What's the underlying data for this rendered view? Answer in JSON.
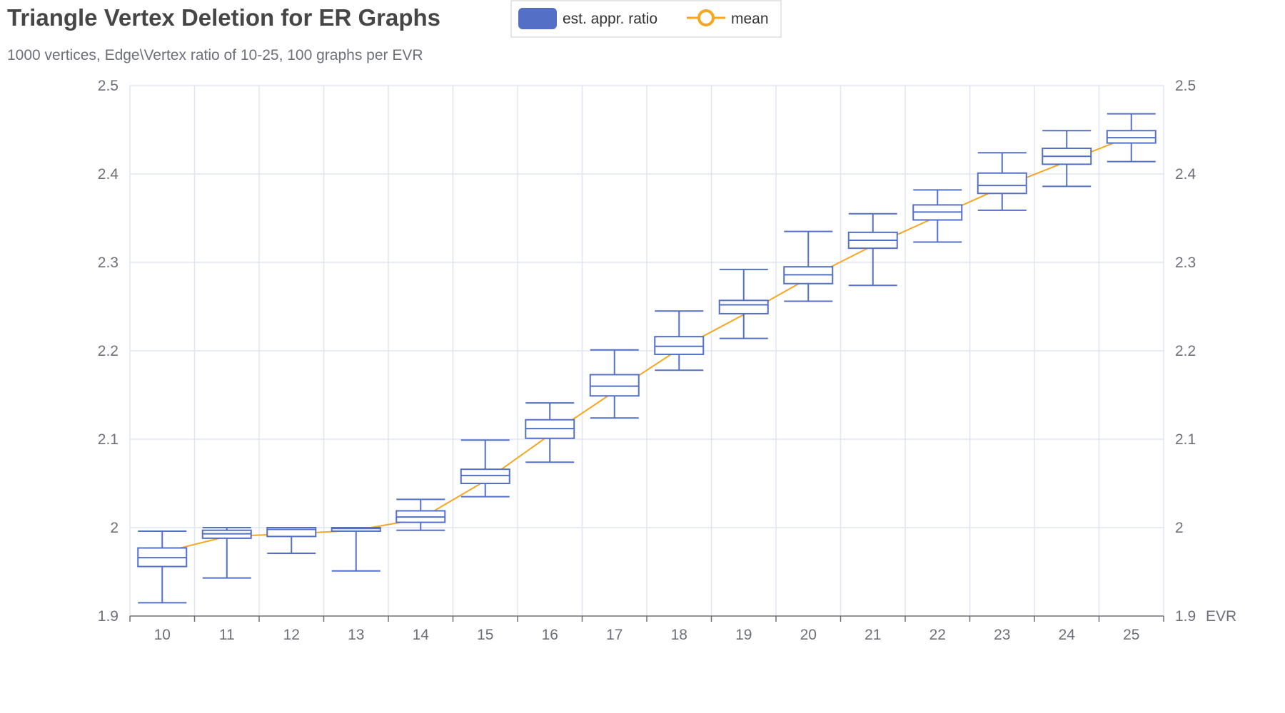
{
  "chart_data": {
    "type": "boxplot",
    "title": "Triangle Vertex Deletion for ER Graphs",
    "subtitle": "1000 vertices, Edge\\Vertex ratio of 10-25, 100 graphs per EVR",
    "xlabel": "EVR",
    "ylabel": "",
    "categories": [
      "10",
      "11",
      "12",
      "13",
      "14",
      "15",
      "16",
      "17",
      "18",
      "19",
      "20",
      "21",
      "22",
      "23",
      "24",
      "25"
    ],
    "ylim": [
      1.9,
      2.5
    ],
    "yticks": [
      "1.9",
      "2",
      "2.1",
      "2.2",
      "2.3",
      "2.4",
      "2.5"
    ],
    "grid": true,
    "legend_position": "top",
    "series": [
      {
        "name": "est. appr. ratio",
        "type": "boxplot",
        "color": "#5470c6",
        "boxes": [
          {
            "min": 1.915,
            "q1": 1.956,
            "median": 1.966,
            "q3": 1.977,
            "max": 1.996
          },
          {
            "min": 1.943,
            "q1": 1.988,
            "median": 1.993,
            "q3": 1.997,
            "max": 2.0
          },
          {
            "min": 1.971,
            "q1": 1.99,
            "median": 1.998,
            "q3": 2.0,
            "max": 2.0
          },
          {
            "min": 1.951,
            "q1": 1.996,
            "median": 1.999,
            "q3": 2.0,
            "max": 2.0
          },
          {
            "min": 1.997,
            "q1": 2.006,
            "median": 2.012,
            "q3": 2.019,
            "max": 2.032
          },
          {
            "min": 2.035,
            "q1": 2.05,
            "median": 2.059,
            "q3": 2.066,
            "max": 2.099
          },
          {
            "min": 2.074,
            "q1": 2.101,
            "median": 2.112,
            "q3": 2.122,
            "max": 2.141
          },
          {
            "min": 2.124,
            "q1": 2.149,
            "median": 2.16,
            "q3": 2.173,
            "max": 2.201
          },
          {
            "min": 2.178,
            "q1": 2.196,
            "median": 2.205,
            "q3": 2.216,
            "max": 2.245
          },
          {
            "min": 2.214,
            "q1": 2.242,
            "median": 2.252,
            "q3": 2.257,
            "max": 2.292
          },
          {
            "min": 2.256,
            "q1": 2.276,
            "median": 2.286,
            "q3": 2.295,
            "max": 2.335
          },
          {
            "min": 2.274,
            "q1": 2.316,
            "median": 2.325,
            "q3": 2.334,
            "max": 2.355
          },
          {
            "min": 2.323,
            "q1": 2.348,
            "median": 2.357,
            "q3": 2.365,
            "max": 2.382
          },
          {
            "min": 2.359,
            "q1": 2.378,
            "median": 2.387,
            "q3": 2.401,
            "max": 2.424
          },
          {
            "min": 2.386,
            "q1": 2.411,
            "median": 2.42,
            "q3": 2.429,
            "max": 2.449
          },
          {
            "min": 2.414,
            "q1": 2.435,
            "median": 2.441,
            "q3": 2.449,
            "max": 2.468
          }
        ]
      },
      {
        "name": "mean",
        "type": "line",
        "color": "#f5a623",
        "values": [
          1.972,
          1.99,
          1.993,
          1.997,
          2.01,
          2.053,
          2.105,
          2.154,
          2.202,
          2.241,
          2.282,
          2.319,
          2.352,
          2.385,
          2.414,
          2.443
        ]
      }
    ]
  }
}
